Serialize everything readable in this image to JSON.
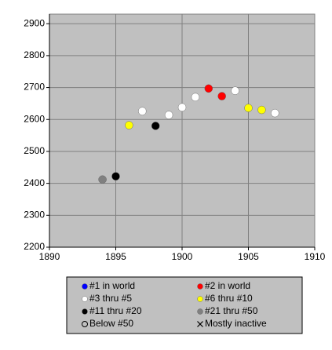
{
  "chart_data": {
    "type": "scatter",
    "xlim": [
      1890,
      1910
    ],
    "xticks": [
      1890,
      1895,
      1900,
      1905,
      1910
    ],
    "ylim": [
      2200,
      2930
    ],
    "yticks": [
      2200,
      2300,
      2400,
      2500,
      2600,
      2700,
      2800,
      2900
    ],
    "grid": true,
    "series": [
      {
        "name": "#1 in world",
        "color": "#0000ff",
        "marker": "filled",
        "x": [],
        "y": []
      },
      {
        "name": "#2 in world",
        "color": "#ff0000",
        "marker": "filled",
        "x": [
          1902,
          1903
        ],
        "y": [
          2697,
          2673
        ]
      },
      {
        "name": "#3 thru #5",
        "color": "#ffffff",
        "marker": "filled",
        "x": [
          1897,
          1899,
          1900,
          1901,
          1904,
          1907
        ],
        "y": [
          2626,
          2614,
          2638,
          2670,
          2690,
          2620
        ]
      },
      {
        "name": "#6 thru #10",
        "color": "#ffff00",
        "marker": "filled",
        "x": [
          1896,
          1905,
          1906
        ],
        "y": [
          2582,
          2636,
          2630
        ]
      },
      {
        "name": "#11 thru #20",
        "color": "#000000",
        "marker": "filled",
        "x": [
          1895,
          1898
        ],
        "y": [
          2422,
          2580
        ]
      },
      {
        "name": "#21 thru #50",
        "color": "#808080",
        "marker": "filled",
        "x": [
          1894
        ],
        "y": [
          2412
        ]
      },
      {
        "name": "Below #50",
        "color": "#000000",
        "marker": "hollow",
        "x": [],
        "y": []
      },
      {
        "name": "Mostly inactive",
        "color": "#000000",
        "marker": "cross",
        "x": [],
        "y": []
      }
    ]
  }
}
